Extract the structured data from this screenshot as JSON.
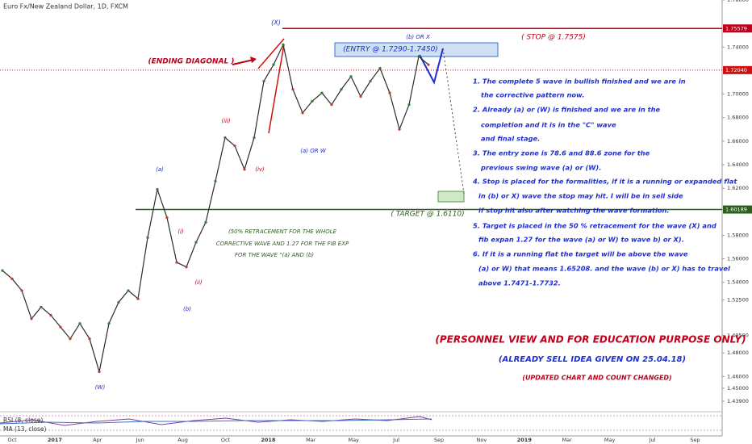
{
  "chart_data": {
    "type": "line",
    "title": "Euro Fx/New Zealand Dollar, 1D, FXCM",
    "color": "#2b2b2b",
    "values": [
      1.55,
      1.543,
      1.533,
      1.509,
      1.519,
      1.512,
      1.502,
      1.492,
      1.505,
      1.492,
      1.464,
      1.505,
      1.523,
      1.533,
      1.526,
      1.578,
      1.619,
      1.595,
      1.557,
      1.553,
      1.574,
      1.591,
      1.626,
      1.663,
      1.656,
      1.636,
      1.663,
      1.711,
      1.725,
      1.742,
      1.704,
      1.684,
      1.694,
      1.701,
      1.691,
      1.704,
      1.715,
      1.698,
      1.711,
      1.722,
      1.701,
      1.67,
      1.691,
      1.732,
      1.725
    ],
    "ylim": [
      1.43,
      1.78
    ],
    "yticks": [
      {
        "value": 1.78,
        "label": "1.78000"
      },
      {
        "value": 1.74,
        "label": "1.74000"
      },
      {
        "value": 1.7,
        "label": "1.70000"
      },
      {
        "value": 1.68,
        "label": "1.68000"
      },
      {
        "value": 1.66,
        "label": "1.66000"
      },
      {
        "value": 1.64,
        "label": "1.64000"
      },
      {
        "value": 1.62,
        "label": "1.62000"
      },
      {
        "value": 1.58,
        "label": "1.58000"
      },
      {
        "value": 1.56,
        "label": "1.56000"
      },
      {
        "value": 1.54,
        "label": "1.54000"
      },
      {
        "value": 1.525,
        "label": "1.52500"
      },
      {
        "value": 1.495,
        "label": "1.49500"
      },
      {
        "value": 1.48,
        "label": "1.48000"
      },
      {
        "value": 1.46,
        "label": "1.46000"
      },
      {
        "value": 1.45,
        "label": "1.45000"
      },
      {
        "value": 1.439,
        "label": "1.43900"
      }
    ],
    "levels": [
      {
        "value": 1.75579,
        "label": "1.75579",
        "color": "#c0001a"
      },
      {
        "value": 1.7204,
        "label": "1.72040",
        "color": "#d01010"
      },
      {
        "value": 1.60189,
        "label": "1.60189",
        "color": "#2e5e1e"
      }
    ],
    "x_axis_labels": [
      "Oct",
      "2017",
      "Apr",
      "Jun",
      "Aug",
      "Oct",
      "2018",
      "Mar",
      "May",
      "Jul",
      "Sep",
      "Nov",
      "2019",
      "Mar",
      "May",
      "Jul",
      "Sep"
    ],
    "annotations": [
      "(X)",
      "(ENDING DIAGONAL )",
      "(ENTRY @ 1.7290-1.7450)",
      "(b) OR X",
      "( STOP @ 1.7575)",
      "(iii)",
      "(a) OR W",
      "(iv)",
      "(a)",
      "(i)",
      "(ii)",
      "(b)",
      "(W)",
      "( TARGET @ 1.6110)",
      "(50% RETRACEMENT FOR THE WHOLE",
      "CORRECTIVE WAVE AND 1.27 FOR THE FIB EXP",
      "FOR THE WAVE \"(a) AND (b)",
      "(PERSONNEL VIEW AND FOR EDUCATION PURPOSE ONLY)",
      "(ALREADY SELL IDEA GIVEN ON 25.04.18)",
      "(UPDATED CHART AND COUNT CHANGED)"
    ],
    "notes": [
      "1. The complete 5 wave in bullish finished  and we are in",
      "the corrective pattern now.",
      "2. Already (a) or (W) is finished and we are in the",
      "completion and it is in the \"C\" wave",
      "and final stage.",
      "3. The entry zone is 78.6 and 88.6 zone for the",
      "previous swing wave (a) or (W).",
      "4. Stop is placed for the formalities, if it is a running or expanded flat",
      "in (b) or X) wave the stop may hit. I will be in sell side",
      "if stop hit also after watching the wave formation.",
      "5. Target is placed in the 50 % retracement for the wave (X) and",
      "fib expan 1.27 for the wave (a) or W) to wave b) or X).",
      "6. If it is a running flat the target will be above the wave",
      "(a) or W) that means 1.65208. and the wave (b) or X) has to travel",
      "above 1.7471-1.7732."
    ],
    "indicators": [
      "RSI (8, close)",
      "MA (13, close)"
    ]
  }
}
